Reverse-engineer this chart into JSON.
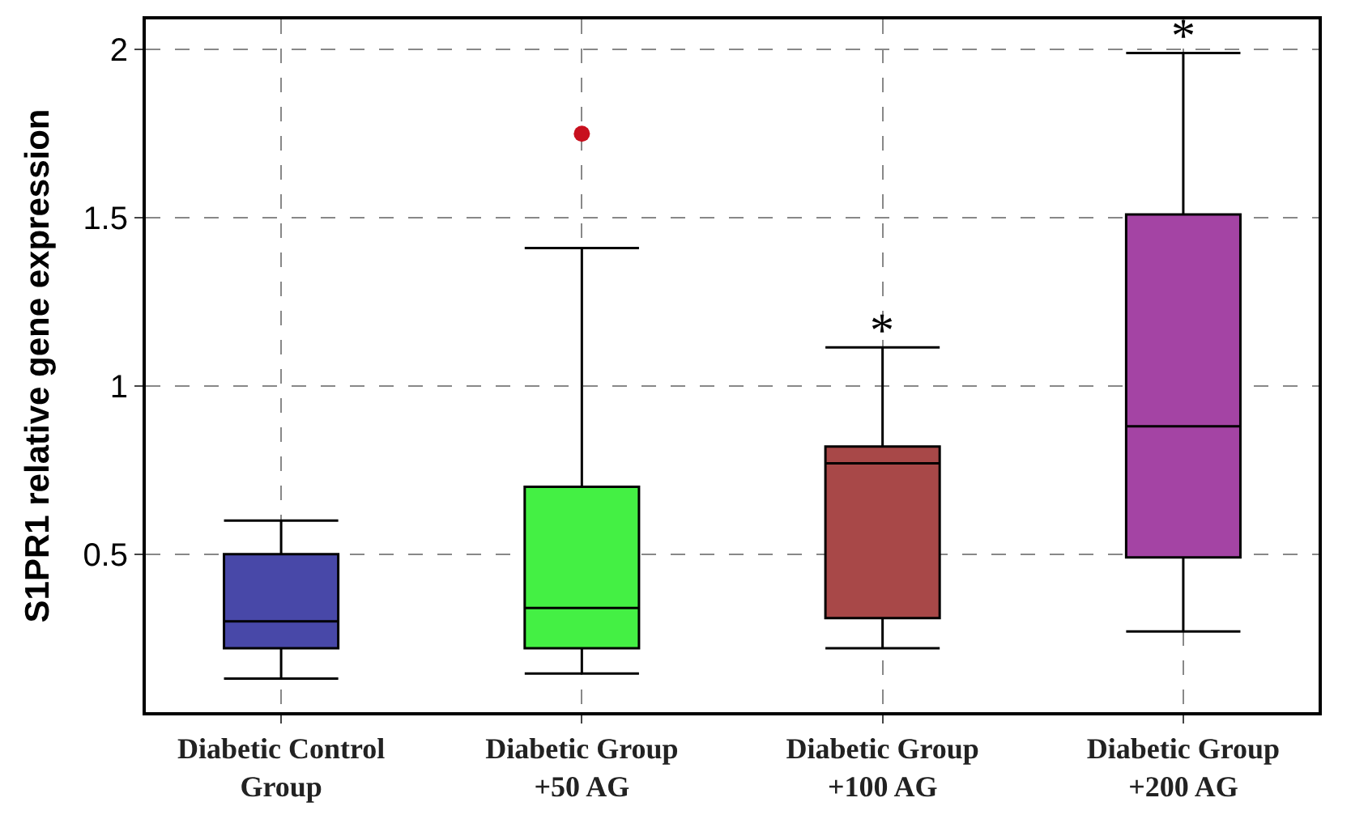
{
  "chart_data": {
    "type": "box",
    "ylabel": "S1PR1 relative gene expression",
    "categories": [
      "Diabetic Control\nGroup",
      "Diabetic Group\n+50 AG",
      "Diabetic Group\n+100 AG",
      "Diabetic Group\n+200 AG"
    ],
    "series": [
      {
        "colors": [
          "#4848a8",
          "#44f044",
          "#a84848",
          "#a444a4"
        ],
        "boxes": [
          {
            "low": 0.13,
            "q1": 0.22,
            "median": 0.3,
            "q3": 0.5,
            "high": 0.6
          },
          {
            "low": 0.145,
            "q1": 0.22,
            "median": 0.34,
            "q3": 0.7,
            "high": 1.41
          },
          {
            "low": 0.22,
            "q1": 0.31,
            "median": 0.77,
            "q3": 0.82,
            "high": 1.115
          },
          {
            "low": 0.27,
            "q1": 0.49,
            "median": 0.88,
            "q3": 1.51,
            "high": 1.99
          }
        ]
      },
      {
        "type": "scatter",
        "x": [
          "Diabetic Group\n+50 AG"
        ],
        "values": [
          1.75
        ],
        "color": "#c8101e",
        "marker": "circle"
      }
    ],
    "annotations": [
      {
        "text": "*",
        "x": "Diabetic Group\n+100 AG",
        "y": 1.115
      },
      {
        "text": "*",
        "x": "Diabetic Group\n+200 AG",
        "y": 1.99
      }
    ],
    "ylim": [
      0.03,
      2.09
    ],
    "yticks": [
      0.5,
      1,
      1.5,
      2
    ],
    "grid": true
  }
}
